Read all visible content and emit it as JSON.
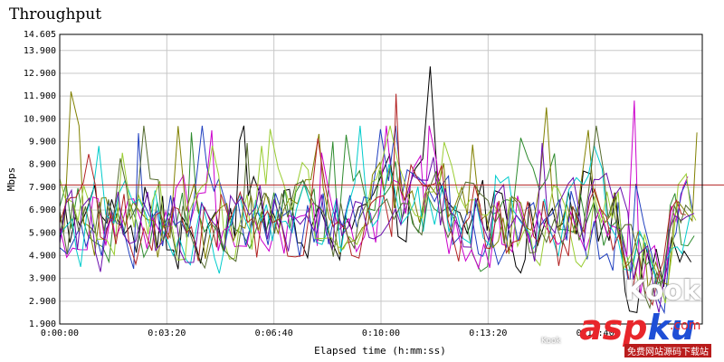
{
  "chart_data": {
    "type": "line",
    "title": "Throughput",
    "xlabel": "Elapsed time (h:mm:ss)",
    "ylabel": "Mbps",
    "ylim": [
      1.9,
      14.605
    ],
    "xlim": [
      0,
      1200
    ],
    "y_ticks": [
      "14.605",
      "13.900",
      "12.900",
      "11.900",
      "10.900",
      "9.900",
      "8.900",
      "7.900",
      "6.900",
      "5.900",
      "4.900",
      "3.900",
      "2.900",
      "1.900"
    ],
    "x_ticks": [
      "0:00:00",
      "0:03:20",
      "0:06:40",
      "0:10:00",
      "0:13:20",
      "0:16:40"
    ],
    "x_tick_values": [
      0,
      200,
      400,
      600,
      800,
      1000
    ],
    "grid": true,
    "reference_line": {
      "value": 8.0,
      "color": "#b22222"
    },
    "series_colors": [
      "#000000",
      "#2e8b2e",
      "#cc00cc",
      "#1f3fbf",
      "#808000",
      "#00cccc",
      "#9acd32",
      "#b22222",
      "#6a0dad",
      "#556b2f"
    ],
    "series_x_end": [
      1190,
      1190,
      1180,
      1190,
      1195,
      1185,
      1188,
      1180,
      1192,
      1186
    ],
    "peaks": [
      {
        "color_index": 4,
        "x": 20,
        "y": 12.1
      },
      {
        "color_index": 0,
        "x": 695,
        "y": 13.2
      },
      {
        "color_index": 7,
        "x": 630,
        "y": 12.0
      },
      {
        "color_index": 2,
        "x": 1075,
        "y": 11.7
      },
      {
        "color_index": 4,
        "x": 905,
        "y": 11.4
      },
      {
        "color_index": 4,
        "x": 1192,
        "y": 10.3
      },
      {
        "color_index": 2,
        "x": 290,
        "y": 10.4
      },
      {
        "color_index": 1,
        "x": 530,
        "y": 10.2
      }
    ]
  },
  "watermark": {
    "brand": "Kook",
    "site": "asp",
    "site_suffix": "ku",
    "tld": ".com",
    "tagline": "免费网站源码下载站",
    "small": "Kook"
  }
}
